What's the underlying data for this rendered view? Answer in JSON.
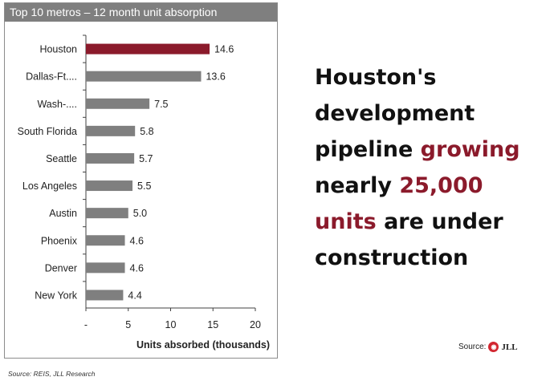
{
  "chart_data": {
    "type": "bar",
    "orientation": "horizontal",
    "title": "Top 10 metros – 12 month unit absorption",
    "xlabel": "Units absorbed (thousands)",
    "xlim": [
      0,
      20
    ],
    "x_ticks": [
      "-",
      "5",
      "10",
      "15",
      "20"
    ],
    "categories": [
      "Houston",
      "Dallas-Ft....",
      "Wash-....",
      "South Florida",
      "Seattle",
      "Los Angeles",
      "Austin",
      "Phoenix",
      "Denver",
      "New York"
    ],
    "values": [
      14.6,
      13.6,
      7.5,
      5.8,
      5.7,
      5.5,
      5.0,
      4.6,
      4.6,
      4.4
    ],
    "value_labels": [
      "14.6",
      "13.6",
      "7.5",
      "5.8",
      "5.7",
      "5.5",
      "5.0",
      "4.6",
      "4.6",
      "4.4"
    ],
    "highlight_index": 0,
    "colors": {
      "highlight": "#8b1a2b",
      "bar": "#7f7f7f",
      "axis": "#404040"
    }
  },
  "footnote": "Source: REIS, JLL Research",
  "headline": {
    "line1": "Houston's",
    "line2": "development",
    "line3_a": "pipeline ",
    "line3_b": "growing",
    "line4_a": "nearly ",
    "line4_b": "25,000",
    "line5_a": "units",
    "line5_b": " are under",
    "line6": "construction"
  },
  "source_label": "Source:",
  "logo": {
    "mark": "◉",
    "text": "JLL"
  }
}
